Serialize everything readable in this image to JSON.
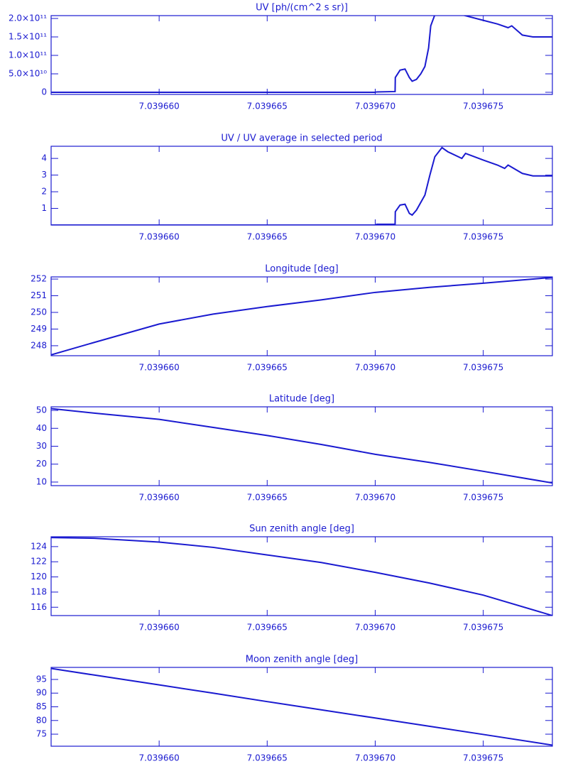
{
  "chart_data": [
    {
      "type": "line",
      "title": "UV [ph/(cm^2 s sr)]",
      "color": "#1a1ad0",
      "x": [
        7.039655,
        7.03967,
        7.03967007,
        7.03967092,
        7.03967093,
        7.03967115,
        7.03967138,
        7.03967158,
        7.03967171,
        7.03967191,
        7.03967211,
        7.0396723,
        7.03967247,
        7.03967257,
        7.03967276,
        7.03967401,
        7.039675,
        7.03967566,
        7.03967615,
        7.03967632,
        7.03967681,
        7.0396773,
        7.0396782
      ],
      "values": [
        0,
        0,
        1000000000,
        2000000000,
        40000000000,
        60000000000,
        63000000000,
        40000000000,
        30000000000,
        35000000000,
        50000000000,
        70000000000,
        120000000000,
        180000000000,
        210000000000,
        210000000000,
        195000000000,
        185000000000,
        175000000000,
        180000000000,
        155000000000,
        150000000000,
        150000000000
      ],
      "xlim": [
        7.039655,
        7.0396782
      ],
      "ylim": [
        -5800000000,
        207700000000
      ],
      "xticks": [
        {
          "value": 7.03966,
          "label": "7.039660"
        },
        {
          "value": 7.039665,
          "label": "7.039665"
        },
        {
          "value": 7.03967,
          "label": "7.039670"
        },
        {
          "value": 7.039675,
          "label": "7.039675"
        }
      ],
      "yticks": [
        0,
        {
          "value": 50000000000,
          "label": "5.0×10¹⁰"
        },
        {
          "value": 100000000000,
          "label": "1.0×10¹¹"
        },
        {
          "value": 150000000000,
          "label": "1.5×10¹¹"
        },
        {
          "value": 200000000000,
          "label": "2.0×10¹¹"
        }
      ]
    },
    {
      "type": "line",
      "title": "UV / UV average in selected period",
      "color": "#1a1ad0",
      "x": [
        7.039655,
        7.03967,
        7.03967007,
        7.03967092,
        7.03967093,
        7.03967115,
        7.03967138,
        7.03967158,
        7.03967171,
        7.03967191,
        7.0396723,
        7.03967253,
        7.03967276,
        7.03967309,
        7.03967336,
        7.03967401,
        7.03967418,
        7.039675,
        7.03967566,
        7.03967599,
        7.03967615,
        7.03967681,
        7.0396773,
        7.0396782
      ],
      "values": [
        0,
        0,
        0.05,
        0.05,
        0.8,
        1.2,
        1.25,
        0.7,
        0.6,
        0.9,
        1.8,
        3.0,
        4.1,
        4.65,
        4.4,
        4.0,
        4.3,
        3.9,
        3.6,
        3.4,
        3.6,
        3.1,
        2.95,
        2.95
      ],
      "xlim": [
        7.039655,
        7.0396782
      ],
      "ylim": [
        0,
        4.73
      ],
      "xticks": [
        {
          "value": 7.03966,
          "label": "7.039660"
        },
        {
          "value": 7.039665,
          "label": "7.039665"
        },
        {
          "value": 7.03967,
          "label": "7.039670"
        },
        {
          "value": 7.039675,
          "label": "7.039675"
        }
      ],
      "yticks": [
        1,
        2,
        3,
        4
      ]
    },
    {
      "type": "line",
      "title": "Longitude [deg]",
      "color": "#1a1ad0",
      "x": [
        7.039655,
        7.039657,
        7.03966,
        7.0396625,
        7.039665,
        7.0396675,
        7.03967,
        7.0396725,
        7.039675,
        7.0396782
      ],
      "values": [
        247.45,
        248.2,
        249.3,
        249.9,
        250.35,
        250.75,
        251.2,
        251.5,
        251.75,
        252.1
      ],
      "xlim": [
        7.039655,
        7.0396782
      ],
      "ylim": [
        247.4,
        252.13
      ],
      "xticks": [
        {
          "value": 7.03966,
          "label": "7.039660"
        },
        {
          "value": 7.039665,
          "label": "7.039665"
        },
        {
          "value": 7.03967,
          "label": "7.039670"
        },
        {
          "value": 7.039675,
          "label": "7.039675"
        }
      ],
      "yticks": [
        248,
        249,
        250,
        251,
        252
      ]
    },
    {
      "type": "line",
      "title": "Latitude [deg]",
      "color": "#1a1ad0",
      "x": [
        7.039655,
        7.039657,
        7.03966,
        7.0396625,
        7.039665,
        7.0396675,
        7.03967,
        7.0396725,
        7.039675,
        7.0396782
      ],
      "values": [
        51,
        48.5,
        45,
        40.5,
        36,
        31,
        25.5,
        21,
        16,
        9.5
      ],
      "xlim": [
        7.039655,
        7.0396782
      ],
      "ylim": [
        8,
        52
      ],
      "xticks": [
        {
          "value": 7.03966,
          "label": "7.039660"
        },
        {
          "value": 7.039665,
          "label": "7.039665"
        },
        {
          "value": 7.03967,
          "label": "7.039670"
        },
        {
          "value": 7.039675,
          "label": "7.039675"
        }
      ],
      "yticks": [
        10,
        20,
        30,
        40,
        50
      ]
    },
    {
      "type": "line",
      "title": "Sun zenith angle [deg]",
      "color": "#1a1ad0",
      "x": [
        7.039655,
        7.039657,
        7.03966,
        7.0396625,
        7.039665,
        7.0396675,
        7.03967,
        7.0396725,
        7.039675,
        7.0396782
      ],
      "values": [
        125.2,
        125.1,
        124.6,
        123.9,
        122.9,
        121.9,
        120.6,
        119.2,
        117.6,
        114.9
      ],
      "xlim": [
        7.039655,
        7.0396782
      ],
      "ylim": [
        114.9,
        125.3
      ],
      "xticks": [
        {
          "value": 7.03966,
          "label": "7.039660"
        },
        {
          "value": 7.039665,
          "label": "7.039665"
        },
        {
          "value": 7.03967,
          "label": "7.039670"
        },
        {
          "value": 7.039675,
          "label": "7.039675"
        }
      ],
      "yticks": [
        116,
        118,
        120,
        122,
        124
      ]
    },
    {
      "type": "line",
      "title": "Moon zenith angle [deg]",
      "color": "#1a1ad0",
      "x": [
        7.039655,
        7.039657,
        7.03966,
        7.0396625,
        7.039665,
        7.0396675,
        7.03967,
        7.0396725,
        7.039675,
        7.0396782
      ],
      "values": [
        99,
        96.6,
        93,
        90,
        86.9,
        83.9,
        80.9,
        77.9,
        74.9,
        71
      ],
      "xlim": [
        7.039655,
        7.0396782
      ],
      "ylim": [
        70.6,
        99.4
      ],
      "xticks": [
        {
          "value": 7.03966,
          "label": "7.039660"
        },
        {
          "value": 7.039665,
          "label": "7.039665"
        },
        {
          "value": 7.03967,
          "label": "7.039670"
        },
        {
          "value": 7.039675,
          "label": "7.039675"
        }
      ],
      "yticks": [
        75,
        80,
        85,
        90,
        95
      ]
    }
  ]
}
